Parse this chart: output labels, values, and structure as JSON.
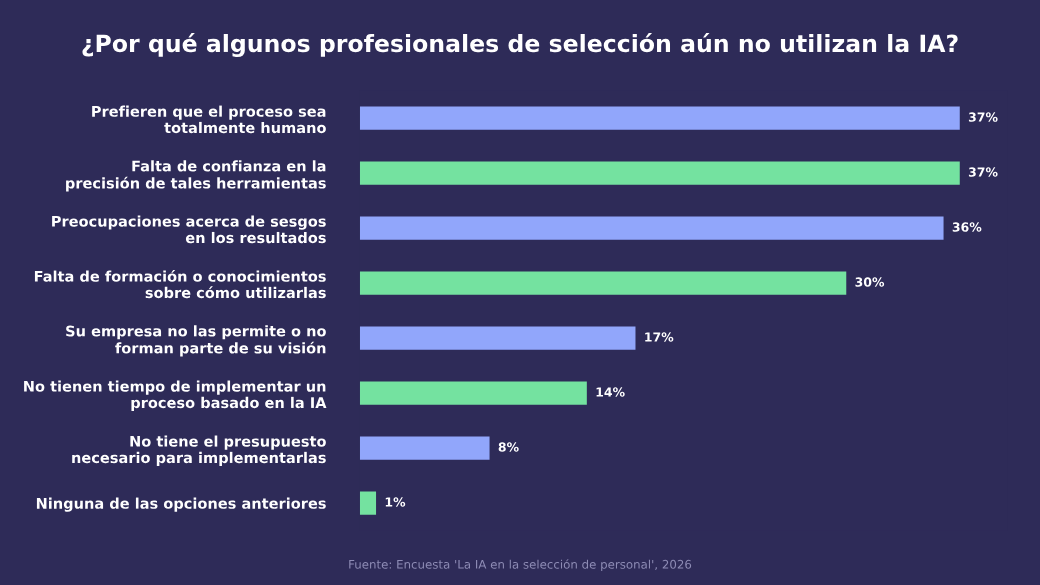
{
  "chart_data": {
    "type": "bar",
    "orientation": "horizontal",
    "title": "¿Por qué algunos profesionales de selección aún no utilizan la IA?",
    "categories": [
      "Prefieren que el proceso sea\ntotalmente humano",
      "Falta de confianza en la\nprecisión de tales herramientas",
      "Preocupaciones acerca de sesgos\nen los resultados",
      "Falta de formación o conocimientos\nsobre cómo utilizarlas",
      "Su empresa no las permite o no\nforman parte de su visión",
      "No tienen tiempo de implementar un\nproceso basado en la IA",
      "No tiene el presupuesto\nnecesario para implementarlas",
      "Ninguna de las opciones anteriores"
    ],
    "values": [
      37,
      37,
      36,
      30,
      17,
      14,
      8,
      1
    ],
    "value_labels": [
      "37%",
      "37%",
      "36%",
      "30%",
      "17%",
      "14%",
      "8%",
      "1%"
    ],
    "colors": [
      "#91a6fb",
      "#74e2a0",
      "#91a6fb",
      "#74e2a0",
      "#91a6fb",
      "#74e2a0",
      "#91a6fb",
      "#74e2a0"
    ],
    "annotations": [
      "Fuente: Encuesta 'La IA en la selección de personal', 2026"
    ],
    "tick_labels": "y",
    "grid": false,
    "legend": false
  }
}
